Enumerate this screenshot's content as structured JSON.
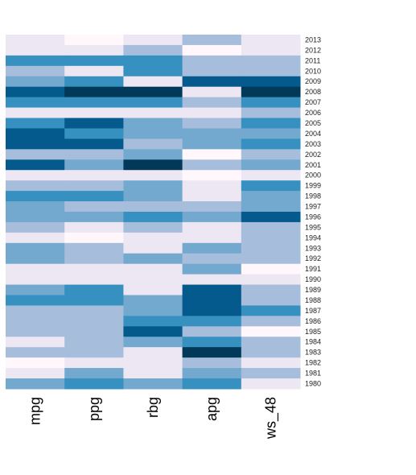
{
  "chart_data": {
    "type": "heatmap",
    "title": "",
    "xlabel": "",
    "ylabel": "",
    "columns": [
      "mpg",
      "ppg",
      "rbg",
      "apg",
      "ws_48"
    ],
    "rows": [
      "2013",
      "2012",
      "2011",
      "2010",
      "2009",
      "2008",
      "2007",
      "2006",
      "2005",
      "2004",
      "2003",
      "2002",
      "2001",
      "2000",
      "1999",
      "1998",
      "1997",
      "1996",
      "1995",
      "1994",
      "1993",
      "1992",
      "1991",
      "1990",
      "1989",
      "1988",
      "1987",
      "1986",
      "1985",
      "1984",
      "1983",
      "1982",
      "1981",
      "1980"
    ],
    "value_range": [
      1,
      7
    ],
    "colormap": [
      "#fff7fb",
      "#ece7f2",
      "#d0d1e6",
      "#a6bddb",
      "#74a9cf",
      "#3690c0",
      "#0570b0",
      "#045a8d",
      "#023858"
    ],
    "legend": "none",
    "grid": false,
    "values": [
      [
        1.5,
        1,
        2,
        3,
        1.5
      ],
      [
        1.5,
        1.5,
        3,
        1,
        1.5
      ],
      [
        5,
        5,
        5,
        3,
        3
      ],
      [
        3,
        2,
        5,
        3,
        3
      ],
      [
        4,
        5,
        1.5,
        6,
        6
      ],
      [
        6,
        7,
        8,
        2,
        8
      ],
      [
        5,
        5,
        5,
        3,
        5
      ],
      [
        1.5,
        1.5,
        1.5,
        2,
        3
      ],
      [
        5,
        6,
        4,
        3,
        5
      ],
      [
        6,
        5,
        4,
        4,
        4
      ],
      [
        6,
        6,
        3,
        4,
        5
      ],
      [
        3,
        3,
        4,
        1,
        3
      ],
      [
        6,
        4,
        7,
        3,
        4
      ],
      [
        1.5,
        1.5,
        1.5,
        1,
        1.5
      ],
      [
        3,
        3,
        4,
        2,
        5
      ],
      [
        5,
        5,
        4,
        2,
        4
      ],
      [
        4,
        3,
        3,
        3,
        4
      ],
      [
        4,
        4,
        5,
        4,
        6
      ],
      [
        3,
        1.5,
        3,
        2,
        3
      ],
      [
        1.5,
        1,
        1.5,
        2,
        3
      ],
      [
        4,
        3,
        1.5,
        4,
        3
      ],
      [
        4,
        3,
        4,
        3,
        3
      ],
      [
        1.5,
        1.5,
        2,
        4,
        1
      ],
      [
        1.5,
        2,
        2,
        1.5,
        1.5
      ],
      [
        4,
        5,
        2,
        6,
        3
      ],
      [
        5,
        5,
        4,
        6,
        3
      ],
      [
        3,
        3,
        4,
        6,
        5
      ],
      [
        3,
        3,
        5,
        5,
        3
      ],
      [
        3,
        3,
        6,
        3,
        1
      ],
      [
        2,
        3,
        4,
        5,
        3
      ],
      [
        3,
        3,
        1.5,
        7,
        3
      ],
      [
        1,
        1.5,
        1.5,
        3,
        2
      ],
      [
        1.5,
        4,
        2,
        4,
        3
      ],
      [
        4,
        5,
        4,
        5,
        2
      ]
    ]
  }
}
